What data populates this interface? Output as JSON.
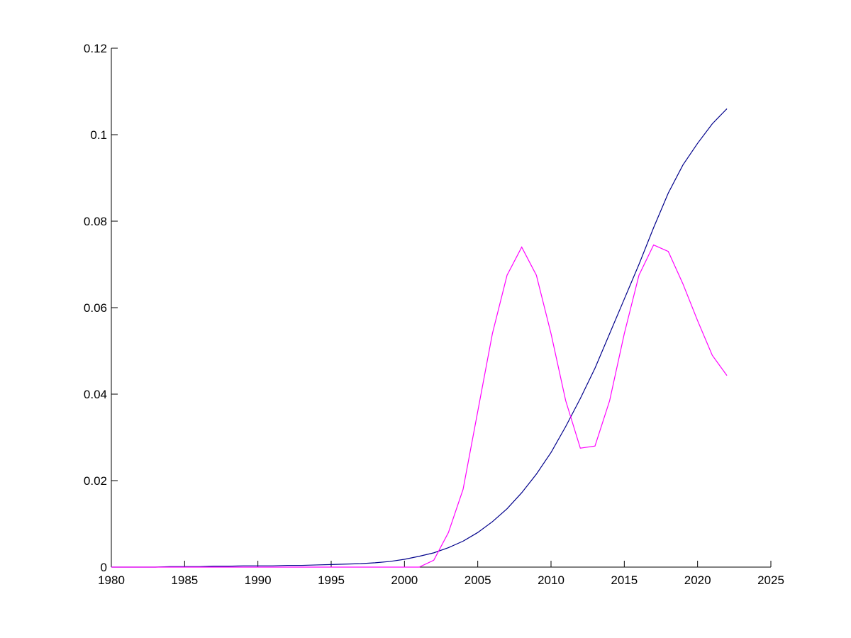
{
  "chart_data": {
    "type": "line",
    "x": [
      1980,
      1981,
      1982,
      1983,
      1984,
      1985,
      1986,
      1987,
      1988,
      1989,
      1990,
      1991,
      1992,
      1993,
      1994,
      1995,
      1996,
      1997,
      1998,
      1999,
      2000,
      2001,
      2002,
      2003,
      2004,
      2005,
      2006,
      2007,
      2008,
      2009,
      2010,
      2011,
      2012,
      2013,
      2014,
      2015,
      2016,
      2017,
      2018,
      2019,
      2020,
      2021,
      2022
    ],
    "series": [
      {
        "color": "#00008b",
        "values": [
          0,
          0,
          0,
          0,
          0.0001,
          0.0001,
          0.0001,
          0.0002,
          0.0002,
          0.0003,
          0.0003,
          0.0003,
          0.0004,
          0.0004,
          0.0005,
          0.0006,
          0.0007,
          0.0008,
          0.001,
          0.0013,
          0.0018,
          0.0025,
          0.0033,
          0.0045,
          0.006,
          0.008,
          0.0105,
          0.0135,
          0.0172,
          0.0215,
          0.0265,
          0.0325,
          0.039,
          0.046,
          0.054,
          0.062,
          0.07,
          0.0785,
          0.0865,
          0.093,
          0.098,
          0.1025,
          0.106
        ]
      },
      {
        "color": "#ff00ff",
        "values": [
          0,
          0,
          0,
          0,
          0,
          0,
          0,
          0,
          0,
          0,
          0,
          0,
          0,
          0,
          0,
          0,
          0,
          0,
          0,
          0,
          0,
          0,
          0.0016,
          0.008,
          0.018,
          0.036,
          0.054,
          0.0675,
          0.074,
          0.0675,
          0.054,
          0.0385,
          0.0275,
          0.028,
          0.0385,
          0.054,
          0.0675,
          0.0745,
          0.073,
          0.0655,
          0.057,
          0.049,
          0.0443
        ]
      }
    ],
    "xlim": [
      1980,
      2025
    ],
    "xticks": [
      1980,
      1985,
      1990,
      1995,
      2000,
      2005,
      2010,
      2015,
      2020,
      2025
    ],
    "ylim": [
      0,
      0.12
    ],
    "yticks": [
      0,
      0.02,
      0.04,
      0.06,
      0.08,
      0.1,
      0.12
    ]
  }
}
